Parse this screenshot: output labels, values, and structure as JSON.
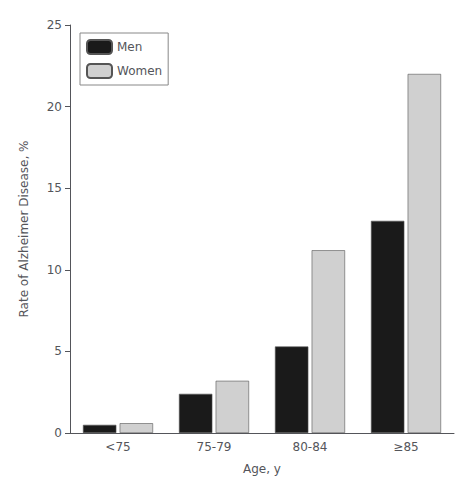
{
  "chart_data": {
    "type": "bar",
    "categories": [
      "<75",
      "75-79",
      "80-84",
      "≥85"
    ],
    "series": [
      {
        "name": "Men",
        "color": "#1a1a1a",
        "values": [
          0.5,
          2.4,
          5.3,
          13.0
        ]
      },
      {
        "name": "Women",
        "color": "#d0d0d0",
        "values": [
          0.6,
          3.2,
          11.2,
          22.0
        ]
      }
    ],
    "xlabel": "Age, y",
    "ylabel": "Rate of Alzheimer Disease, %",
    "ylim": [
      0,
      25
    ],
    "yticks": [
      0,
      5,
      10,
      15,
      20,
      25
    ],
    "grid": false,
    "legend": "upper left"
  }
}
